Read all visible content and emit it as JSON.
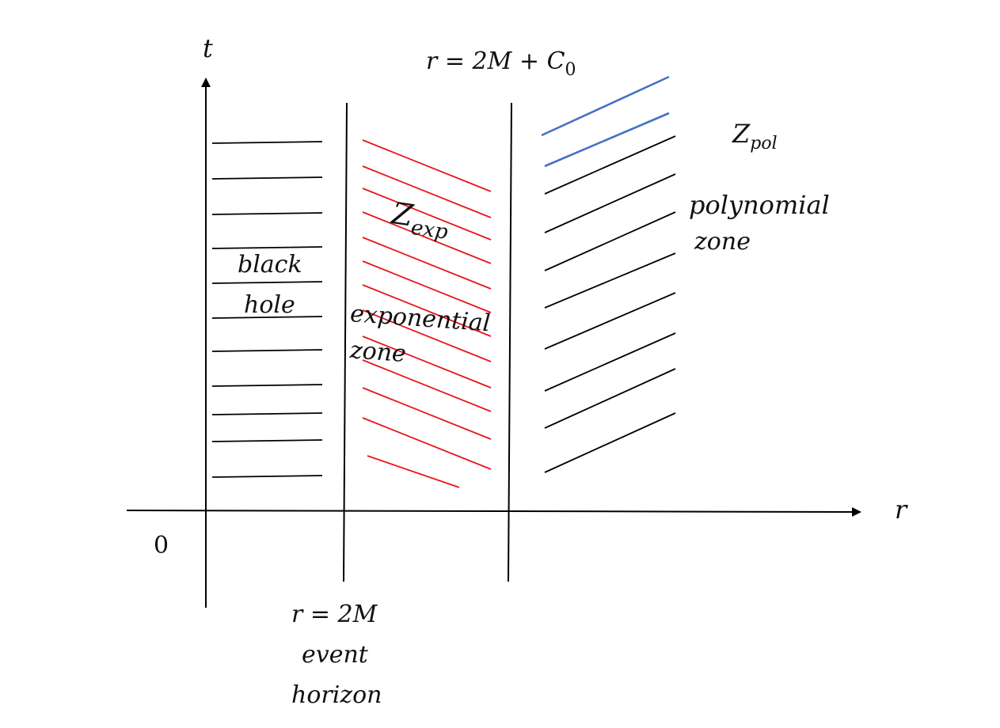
{
  "axes": {
    "t_label": "t",
    "r_label": "r",
    "origin_label": "0"
  },
  "boundaries": {
    "horizon_eq": "r = 2M",
    "horizon_name_1": "event",
    "horizon_name_2": "horizon",
    "outer_eq_prefix": "r = 2M + ",
    "outer_eq_symbol": "C",
    "outer_eq_subscript": "0"
  },
  "zones": {
    "black_hole": {
      "line1": "black",
      "line2": "hole",
      "line_color": "#000000"
    },
    "exponential": {
      "symbol": "Z",
      "subscript": "exp",
      "line1": "exponential",
      "line2": "zone",
      "line_color": "#e8141c"
    },
    "polynomial": {
      "symbol": "Z",
      "subscript": "pol",
      "line1": "polynomial",
      "line2": "zone",
      "line_color": "#000000",
      "highlight_color": "#4472c4"
    }
  }
}
